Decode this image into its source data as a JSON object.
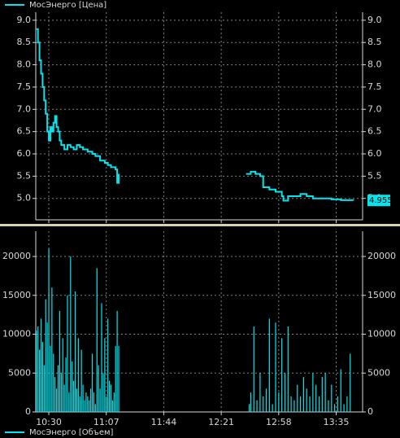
{
  "chart_data": [
    {
      "type": "line",
      "series": [
        {
          "name": "МосЭнерго [Цена]",
          "color": "#00e5ee",
          "x": [
            622,
            623,
            624,
            625,
            626,
            627,
            628,
            629,
            630,
            631,
            632,
            633,
            634,
            635,
            636,
            637,
            638,
            640,
            642,
            644,
            646,
            648,
            650,
            652,
            655,
            658,
            660,
            663,
            666,
            668,
            670,
            673,
            674,
            675,
            700,
            757,
            760,
            763,
            766,
            768,
            772,
            776,
            780,
            781,
            784,
            788,
            792,
            796,
            800,
            806,
            812,
            818,
            826
          ],
          "values": [
            8.8,
            8.5,
            8.1,
            7.8,
            7.5,
            7.2,
            6.9,
            6.5,
            6.3,
            6.6,
            6.5,
            6.7,
            6.85,
            6.6,
            6.5,
            6.3,
            6.2,
            6.1,
            6.2,
            6.15,
            6.1,
            6.2,
            6.15,
            6.1,
            6.05,
            6.0,
            5.95,
            5.85,
            5.8,
            5.75,
            5.7,
            5.65,
            5.35,
            5.55,
            null,
            5.55,
            5.6,
            5.55,
            5.5,
            5.25,
            5.2,
            5.15,
            5.05,
            4.95,
            5.05,
            5.05,
            5.1,
            5.05,
            5.0,
            5.0,
            4.98,
            4.96,
            4.955
          ]
        }
      ],
      "xlim": [
        621.6,
        832
      ],
      "ylim": [
        4.52,
        9.18
      ],
      "yticks": [
        {
          "value": 5,
          "label": "5.0"
        },
        {
          "value": 5.5,
          "label": "5.5"
        },
        {
          "value": 6,
          "label": "6.0"
        },
        {
          "value": 6.5,
          "label": "6.5"
        },
        {
          "value": 7,
          "label": "7.0"
        },
        {
          "value": 7.5,
          "label": "7.5"
        },
        {
          "value": 8,
          "label": "8.0"
        },
        {
          "value": 8.5,
          "label": "8.5"
        },
        {
          "value": 9,
          "label": "9.0"
        }
      ],
      "xticks": [
        630,
        667,
        704,
        741,
        778,
        815
      ],
      "grid": true
    },
    {
      "type": "bar",
      "series": [
        {
          "name": "МосЭнерго [Объем]",
          "color": "#00e5ee",
          "x": [
            622,
            623,
            624,
            625,
            626,
            627,
            628,
            629,
            630,
            631,
            632,
            633,
            634,
            635,
            636,
            637,
            638,
            639,
            640,
            641,
            642,
            643,
            644,
            645,
            646,
            647,
            648,
            649,
            650,
            651,
            652,
            653,
            654,
            655,
            656,
            657,
            658,
            659,
            660,
            661,
            662,
            663,
            664,
            665,
            666,
            667,
            668,
            669,
            670,
            671,
            672,
            673,
            674,
            675,
            759,
            760,
            762,
            764,
            766,
            768,
            770,
            772,
            774,
            776,
            778,
            780,
            782,
            784,
            786,
            788,
            790,
            792,
            794,
            796,
            798,
            800,
            802,
            804,
            806,
            808,
            810,
            812,
            814,
            816,
            818,
            820,
            822,
            824
          ],
          "values": [
            10500,
            11000,
            8000,
            12000,
            9000,
            6000,
            14500,
            11500,
            21000,
            8500,
            16000,
            7500,
            4500,
            3000,
            6000,
            13000,
            5000,
            9500,
            3500,
            7000,
            15000,
            2500,
            20000,
            6500,
            4000,
            15500,
            3000,
            9500,
            2000,
            8000,
            3500,
            1500,
            2500,
            2000,
            1500,
            3000,
            7500,
            2500,
            1000,
            18500,
            6000,
            3000,
            14000,
            5000,
            9500,
            2000,
            12000,
            4000,
            3500,
            1500,
            2500,
            8500,
            13000,
            8500,
            1000,
            2500,
            11000,
            1500,
            5000,
            2000,
            3000,
            12000,
            1000,
            11500,
            2500,
            9500,
            5000,
            11000,
            2000,
            1500,
            3500,
            2000,
            4500,
            3000,
            2000,
            5000,
            3500,
            2000,
            4500,
            5000,
            1500,
            3500,
            1000,
            2000,
            5500,
            1000,
            2000,
            7500
          ]
        }
      ],
      "xlim": [
        621.6,
        832
      ],
      "ylim": [
        0,
        23250
      ],
      "yticks": [
        0,
        5000,
        10000,
        15000,
        20000
      ],
      "xticks": [
        {
          "value": 630,
          "label": "10:30"
        },
        {
          "value": 667,
          "label": "11:07"
        },
        {
          "value": 704,
          "label": "11:44"
        },
        {
          "value": 741,
          "label": "12:21"
        },
        {
          "value": 778,
          "label": "12:58"
        },
        {
          "value": 815,
          "label": "13:35"
        }
      ],
      "grid": true
    }
  ]
}
